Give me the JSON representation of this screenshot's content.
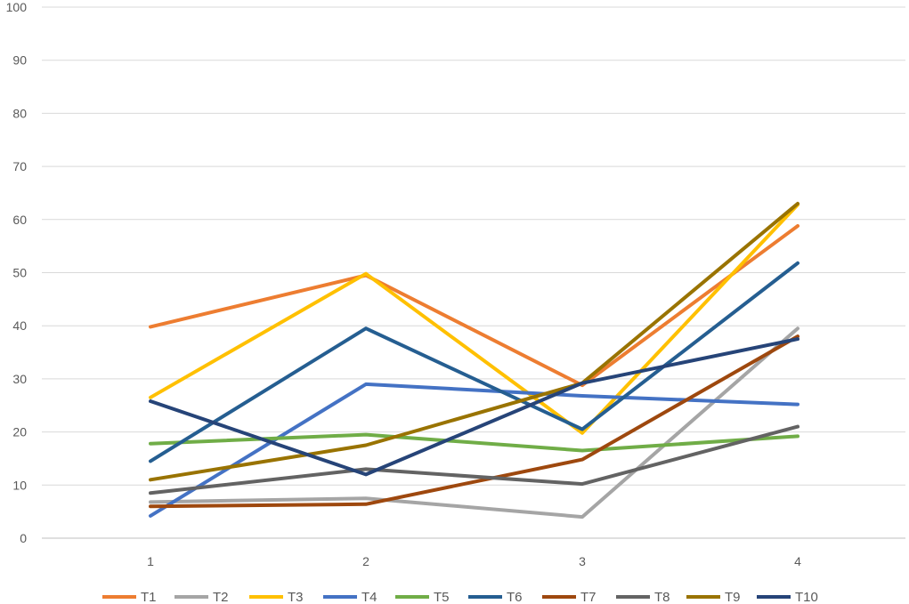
{
  "chart_data": {
    "type": "line",
    "x": [
      "1",
      "2",
      "3",
      "4"
    ],
    "ylim": [
      0,
      100
    ],
    "yticks": [
      "0",
      "10",
      "20",
      "30",
      "40",
      "50",
      "60",
      "70",
      "80",
      "90",
      "100"
    ],
    "grid": "horizontal",
    "legend": "bottom",
    "series": [
      {
        "name": "T1",
        "color": "#ED7D31",
        "values": [
          39.8,
          49.5,
          28.8,
          58.8
        ]
      },
      {
        "name": "T2",
        "color": "#A5A5A5",
        "values": [
          6.8,
          7.5,
          4.0,
          39.5
        ]
      },
      {
        "name": "T3",
        "color": "#FFC000",
        "values": [
          26.5,
          49.8,
          19.8,
          62.8
        ]
      },
      {
        "name": "T4",
        "color": "#4472C4",
        "values": [
          4.2,
          29.0,
          26.8,
          25.2
        ]
      },
      {
        "name": "T5",
        "color": "#70AD47",
        "values": [
          17.8,
          19.5,
          16.5,
          19.2
        ]
      },
      {
        "name": "T6",
        "color": "#255E91",
        "values": [
          14.5,
          39.5,
          20.5,
          51.8
        ]
      },
      {
        "name": "T7",
        "color": "#9E480E",
        "values": [
          6.0,
          6.4,
          14.8,
          38.0
        ]
      },
      {
        "name": "T8",
        "color": "#636363",
        "values": [
          8.5,
          13.0,
          10.2,
          21.0
        ]
      },
      {
        "name": "T9",
        "color": "#997300",
        "values": [
          11.0,
          17.5,
          29.2,
          63.0
        ]
      },
      {
        "name": "T10",
        "color": "#264478",
        "values": [
          25.8,
          12.0,
          29.2,
          37.5
        ]
      }
    ]
  }
}
